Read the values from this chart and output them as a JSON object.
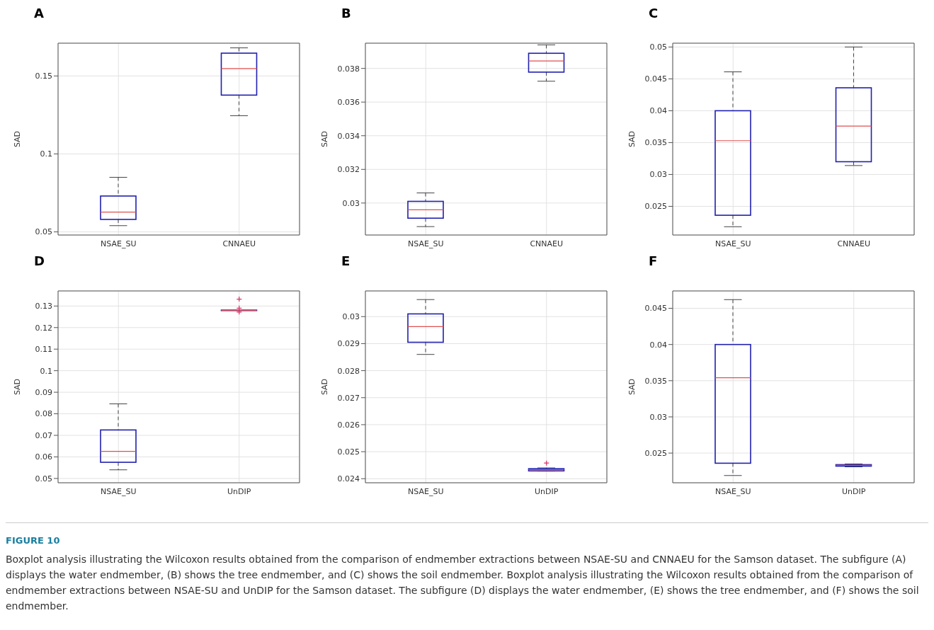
{
  "chart_data": [
    {
      "type": "box",
      "title": "A",
      "ylabel": "SAD",
      "categories": [
        "NSAE_SU",
        "CNNAEU"
      ],
      "ylim": [
        0.048,
        0.171
      ],
      "yticks": [
        0.05,
        0.1,
        0.15
      ],
      "grid": true,
      "color": "#2020b0",
      "boxes": [
        {
          "low": 0.054,
          "q1": 0.058,
          "median": 0.0627,
          "q3": 0.073,
          "high": 0.085
        },
        {
          "low": 0.1245,
          "q1": 0.1377,
          "median": 0.1547,
          "q3": 0.1646,
          "high": 0.168
        }
      ],
      "annotations": [
        "FIGURE 10",
        "Boxplot analysis illustrating the Wilcoxon results obtained from the comparison of endmember extractions between NSAE-SU and CNNAEU for the Samson dataset. The subfigure (A) displays the water endmember, (B) shows the tree endmember, and (C) shows the soil endmember. Boxplot analysis illustrating the Wilcoxon results obtained from the comparison of endmember extractions between NSAE-SU and UnDIP for the Samson dataset. The subfigure (D) displays the water endmember, (E) shows the tree endmember, and (F) shows the soil endmember."
      ]
    },
    {
      "type": "box",
      "title": "B",
      "ylabel": "SAD",
      "categories": [
        "NSAE_SU",
        "CNNAEU"
      ],
      "ylim": [
        0.0281,
        0.0395
      ],
      "yticks": [
        0.03,
        0.032,
        0.034,
        0.036,
        0.038
      ],
      "grid": true,
      "color": "#2020b0",
      "boxes": [
        {
          "low": 0.0286,
          "q1": 0.0291,
          "median": 0.0296,
          "q3": 0.0301,
          "high": 0.0306
        },
        {
          "low": 0.03724,
          "q1": 0.03778,
          "median": 0.03844,
          "q3": 0.0389,
          "high": 0.0394
        }
      ]
    },
    {
      "type": "box",
      "title": "C",
      "ylabel": "SAD",
      "categories": [
        "NSAE_SU",
        "CNNAEU"
      ],
      "ylim": [
        0.0205,
        0.0506
      ],
      "yticks": [
        0.025,
        0.03,
        0.035,
        0.04,
        0.045,
        0.05
      ],
      "grid": true,
      "color": "#2020b0",
      "boxes": [
        {
          "low": 0.0218,
          "q1": 0.0236,
          "median": 0.0353,
          "q3": 0.04,
          "high": 0.0461
        },
        {
          "low": 0.0314,
          "q1": 0.032,
          "median": 0.0376,
          "q3": 0.0436,
          "high": 0.05
        }
      ]
    },
    {
      "type": "box",
      "title": "D",
      "ylabel": "SAD",
      "categories": [
        "NSAE_SU",
        "UnDIP"
      ],
      "ylim": [
        0.048,
        0.137
      ],
      "yticks": [
        0.05,
        0.06,
        0.07,
        0.08,
        0.09,
        0.1,
        0.11,
        0.12,
        0.13
      ],
      "grid": true,
      "color": "#2020b0",
      "boxes": [
        {
          "low": 0.054,
          "q1": 0.0575,
          "median": 0.0626,
          "q3": 0.0725,
          "high": 0.0846
        },
        {
          "low": 0.1279,
          "q1": 0.1279,
          "median": 0.128,
          "q3": 0.1281,
          "high": 0.1281,
          "outliers": [
            0.1332,
            0.129,
            0.1272
          ]
        }
      ]
    },
    {
      "type": "box",
      "title": "E",
      "ylabel": "SAD",
      "categories": [
        "NSAE_SU",
        "UnDIP"
      ],
      "ylim": [
        0.02385,
        0.03095
      ],
      "yticks": [
        0.024,
        0.025,
        0.026,
        0.027,
        0.028,
        0.029,
        0.03
      ],
      "grid": true,
      "color": "#2020b0",
      "boxes": [
        {
          "low": 0.0286,
          "q1": 0.02905,
          "median": 0.02963,
          "q3": 0.0301,
          "high": 0.03063
        },
        {
          "low": 0.02428,
          "q1": 0.02429,
          "median": 0.02433,
          "q3": 0.02437,
          "high": 0.0244,
          "outliers": [
            0.02458
          ]
        }
      ]
    },
    {
      "type": "box",
      "title": "F",
      "ylabel": "SAD",
      "categories": [
        "NSAE_SU",
        "UnDIP"
      ],
      "ylim": [
        0.0209,
        0.0474
      ],
      "yticks": [
        0.025,
        0.03,
        0.035,
        0.04,
        0.045
      ],
      "grid": true,
      "color": "#2020b0",
      "boxes": [
        {
          "low": 0.0219,
          "q1": 0.0236,
          "median": 0.0354,
          "q3": 0.04,
          "high": 0.0462
        },
        {
          "low": 0.0231,
          "q1": 0.0232,
          "median": 0.0233,
          "q3": 0.0234,
          "high": 0.0235
        }
      ]
    }
  ]
}
